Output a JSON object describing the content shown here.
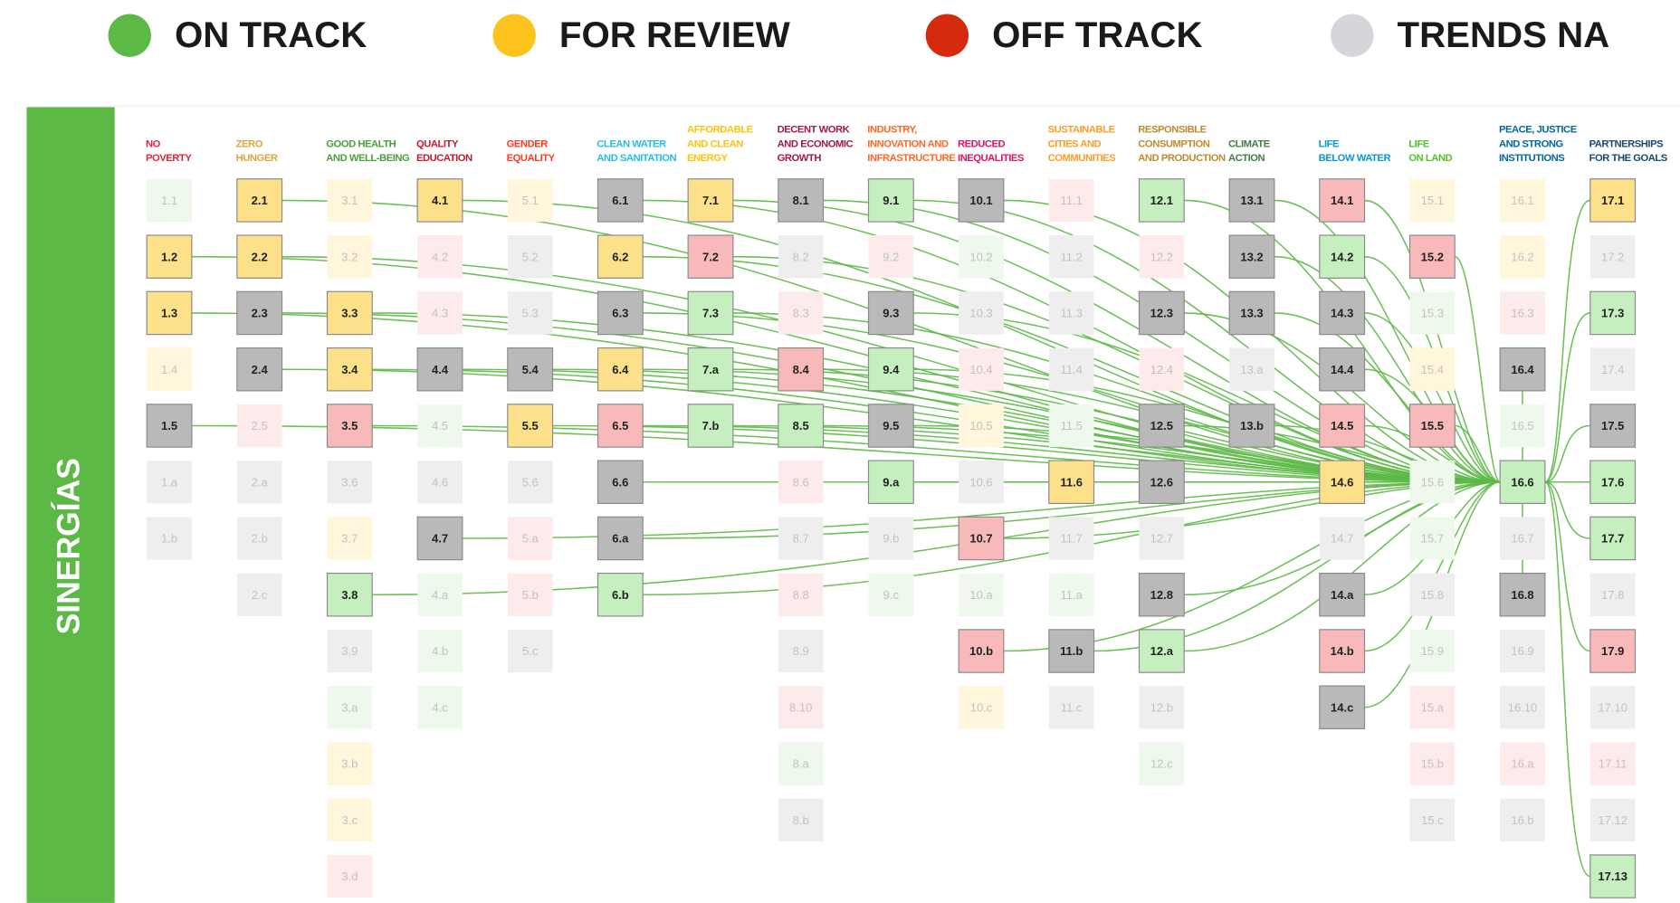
{
  "legend": [
    {
      "label": "ON TRACK",
      "color": "#5cb946",
      "fill": "#c6efc0",
      "fill_faded": "#eef8ec"
    },
    {
      "label": "FOR REVIEW",
      "color": "#fbc31b",
      "fill": "#fde08a",
      "fill_faded": "#fff6dc"
    },
    {
      "label": "OFF TRACK",
      "color": "#d42a0e",
      "fill": "#f7b9b9",
      "fill_faded": "#fdeaea"
    },
    {
      "label": "TRENDS NA",
      "color": "#d6d6da",
      "fill": "#b9b9b9",
      "fill_faded": "#eeeeee"
    }
  ],
  "sidebar": {
    "label": "SINERGÍAS",
    "color": "#5cb946"
  },
  "link_color": "#5cb946",
  "goals": [
    {
      "header": [
        "NO",
        "POVERTY"
      ],
      "color": "#e5243b",
      "targets": [
        {
          "label": "1.1",
          "status": 0,
          "active": false
        },
        {
          "label": "1.2",
          "status": 1,
          "active": true
        },
        {
          "label": "1.3",
          "status": 1,
          "active": true
        },
        {
          "label": "1.4",
          "status": 1,
          "active": false
        },
        {
          "label": "1.5",
          "status": 3,
          "active": true
        },
        {
          "label": "1.a",
          "status": 3,
          "active": false
        },
        {
          "label": "1.b",
          "status": 3,
          "active": false
        }
      ]
    },
    {
      "header": [
        "ZERO",
        "HUNGER"
      ],
      "color": "#dda63a",
      "targets": [
        {
          "label": "2.1",
          "status": 1,
          "active": true
        },
        {
          "label": "2.2",
          "status": 1,
          "active": true
        },
        {
          "label": "2.3",
          "status": 3,
          "active": true
        },
        {
          "label": "2.4",
          "status": 3,
          "active": true
        },
        {
          "label": "2.5",
          "status": 2,
          "active": false
        },
        {
          "label": "2.a",
          "status": 3,
          "active": false
        },
        {
          "label": "2.b",
          "status": 3,
          "active": false
        },
        {
          "label": "2.c",
          "status": 3,
          "active": false
        }
      ]
    },
    {
      "header": [
        "GOOD HEALTH",
        "AND WELL-BEING"
      ],
      "color": "#4c9f38",
      "targets": [
        {
          "label": "3.1",
          "status": 1,
          "active": false
        },
        {
          "label": "3.2",
          "status": 1,
          "active": false
        },
        {
          "label": "3.3",
          "status": 1,
          "active": true
        },
        {
          "label": "3.4",
          "status": 1,
          "active": true
        },
        {
          "label": "3.5",
          "status": 2,
          "active": true
        },
        {
          "label": "3.6",
          "status": 3,
          "active": false
        },
        {
          "label": "3.7",
          "status": 1,
          "active": false
        },
        {
          "label": "3.8",
          "status": 0,
          "active": true
        },
        {
          "label": "3.9",
          "status": 3,
          "active": false
        },
        {
          "label": "3.a",
          "status": 0,
          "active": false
        },
        {
          "label": "3.b",
          "status": 1,
          "active": false
        },
        {
          "label": "3.c",
          "status": 1,
          "active": false
        },
        {
          "label": "3.d",
          "status": 2,
          "active": false
        }
      ]
    },
    {
      "header": [
        "QUALITY",
        "EDUCATION"
      ],
      "color": "#c5192d",
      "targets": [
        {
          "label": "4.1",
          "status": 1,
          "active": true
        },
        {
          "label": "4.2",
          "status": 2,
          "active": false
        },
        {
          "label": "4.3",
          "status": 2,
          "active": false
        },
        {
          "label": "4.4",
          "status": 3,
          "active": true
        },
        {
          "label": "4.5",
          "status": 0,
          "active": false
        },
        {
          "label": "4.6",
          "status": 3,
          "active": false
        },
        {
          "label": "4.7",
          "status": 3,
          "active": true
        },
        {
          "label": "4.a",
          "status": 0,
          "active": false
        },
        {
          "label": "4.b",
          "status": 0,
          "active": false
        },
        {
          "label": "4.c",
          "status": 0,
          "active": false
        }
      ]
    },
    {
      "header": [
        "GENDER",
        "EQUALITY"
      ],
      "color": "#ff3a21",
      "targets": [
        {
          "label": "5.1",
          "status": 1,
          "active": false
        },
        {
          "label": "5.2",
          "status": 3,
          "active": false
        },
        {
          "label": "5.3",
          "status": 3,
          "active": false
        },
        {
          "label": "5.4",
          "status": 3,
          "active": true
        },
        {
          "label": "5.5",
          "status": 1,
          "active": true
        },
        {
          "label": "5.6",
          "status": 3,
          "active": false
        },
        {
          "label": "5.a",
          "status": 2,
          "active": false
        },
        {
          "label": "5.b",
          "status": 2,
          "active": false
        },
        {
          "label": "5.c",
          "status": 3,
          "active": false
        }
      ]
    },
    {
      "header": [
        "CLEAN WATER",
        "AND SANITATION"
      ],
      "color": "#26bde2",
      "targets": [
        {
          "label": "6.1",
          "status": 3,
          "active": true
        },
        {
          "label": "6.2",
          "status": 1,
          "active": true
        },
        {
          "label": "6.3",
          "status": 3,
          "active": true
        },
        {
          "label": "6.4",
          "status": 1,
          "active": true
        },
        {
          "label": "6.5",
          "status": 2,
          "active": true
        },
        {
          "label": "6.6",
          "status": 3,
          "active": true
        },
        {
          "label": "6.a",
          "status": 3,
          "active": true
        },
        {
          "label": "6.b",
          "status": 0,
          "active": true
        }
      ]
    },
    {
      "header": [
        "AFFORDABLE",
        "AND CLEAN",
        "ENERGY"
      ],
      "color": "#fcc30b",
      "targets": [
        {
          "label": "7.1",
          "status": 1,
          "active": true
        },
        {
          "label": "7.2",
          "status": 2,
          "active": true
        },
        {
          "label": "7.3",
          "status": 0,
          "active": true
        },
        {
          "label": "7.a",
          "status": 0,
          "active": true
        },
        {
          "label": "7.b",
          "status": 0,
          "active": true
        }
      ]
    },
    {
      "header": [
        "DECENT WORK",
        "AND ECONOMIC",
        "GROWTH"
      ],
      "color": "#a21942",
      "targets": [
        {
          "label": "8.1",
          "status": 3,
          "active": true
        },
        {
          "label": "8.2",
          "status": 3,
          "active": false
        },
        {
          "label": "8.3",
          "status": 2,
          "active": false
        },
        {
          "label": "8.4",
          "status": 2,
          "active": true
        },
        {
          "label": "8.5",
          "status": 0,
          "active": true
        },
        {
          "label": "8.6",
          "status": 2,
          "active": false
        },
        {
          "label": "8.7",
          "status": 3,
          "active": false
        },
        {
          "label": "8.8",
          "status": 2,
          "active": false
        },
        {
          "label": "8.9",
          "status": 3,
          "active": false
        },
        {
          "label": "8.10",
          "status": 2,
          "active": false
        },
        {
          "label": "8.a",
          "status": 0,
          "active": false
        },
        {
          "label": "8.b",
          "status": 3,
          "active": false
        }
      ]
    },
    {
      "header": [
        "INDUSTRY,",
        "INNOVATION AND",
        "INFRASTRUCTURE"
      ],
      "color": "#fd6925",
      "targets": [
        {
          "label": "9.1",
          "status": 0,
          "active": true
        },
        {
          "label": "9.2",
          "status": 2,
          "active": false
        },
        {
          "label": "9.3",
          "status": 3,
          "active": true
        },
        {
          "label": "9.4",
          "status": 0,
          "active": true
        },
        {
          "label": "9.5",
          "status": 3,
          "active": true
        },
        {
          "label": "9.a",
          "status": 0,
          "active": true
        },
        {
          "label": "9.b",
          "status": 3,
          "active": false
        },
        {
          "label": "9.c",
          "status": 0,
          "active": false
        }
      ]
    },
    {
      "header": [
        "REDUCED",
        "INEQUALITIES"
      ],
      "color": "#dd1367",
      "targets": [
        {
          "label": "10.1",
          "status": 3,
          "active": true
        },
        {
          "label": "10.2",
          "status": 0,
          "active": false
        },
        {
          "label": "10.3",
          "status": 3,
          "active": false
        },
        {
          "label": "10.4",
          "status": 2,
          "active": false
        },
        {
          "label": "10.5",
          "status": 1,
          "active": false
        },
        {
          "label": "10.6",
          "status": 3,
          "active": false
        },
        {
          "label": "10.7",
          "status": 2,
          "active": true
        },
        {
          "label": "10.a",
          "status": 0,
          "active": false
        },
        {
          "label": "10.b",
          "status": 2,
          "active": true
        },
        {
          "label": "10.c",
          "status": 1,
          "active": false
        }
      ]
    },
    {
      "header": [
        "SUSTAINABLE",
        "CITIES AND",
        "COMMUNITIES"
      ],
      "color": "#fd9d24",
      "targets": [
        {
          "label": "11.1",
          "status": 2,
          "active": false
        },
        {
          "label": "11.2",
          "status": 3,
          "active": false
        },
        {
          "label": "11.3",
          "status": 3,
          "active": false
        },
        {
          "label": "11.4",
          "status": 3,
          "active": false
        },
        {
          "label": "11.5",
          "status": 0,
          "active": false
        },
        {
          "label": "11.6",
          "status": 1,
          "active": true
        },
        {
          "label": "11.7",
          "status": 3,
          "active": false
        },
        {
          "label": "11.a",
          "status": 0,
          "active": false
        },
        {
          "label": "11.b",
          "status": 3,
          "active": true
        },
        {
          "label": "11.c",
          "status": 3,
          "active": false
        }
      ]
    },
    {
      "header": [
        "RESPONSIBLE",
        "CONSUMPTION",
        "AND PRODUCTION"
      ],
      "color": "#bf8b2e",
      "targets": [
        {
          "label": "12.1",
          "status": 0,
          "active": true
        },
        {
          "label": "12.2",
          "status": 2,
          "active": false
        },
        {
          "label": "12.3",
          "status": 3,
          "active": true
        },
        {
          "label": "12.4",
          "status": 2,
          "active": false
        },
        {
          "label": "12.5",
          "status": 3,
          "active": true
        },
        {
          "label": "12.6",
          "status": 3,
          "active": true
        },
        {
          "label": "12.7",
          "status": 3,
          "active": false
        },
        {
          "label": "12.8",
          "status": 3,
          "active": true
        },
        {
          "label": "12.a",
          "status": 0,
          "active": true
        },
        {
          "label": "12.b",
          "status": 3,
          "active": false
        },
        {
          "label": "12.c",
          "status": 0,
          "active": false
        }
      ]
    },
    {
      "header": [
        "CLIMATE",
        "ACTION"
      ],
      "color": "#3f7e44",
      "targets": [
        {
          "label": "13.1",
          "status": 3,
          "active": true
        },
        {
          "label": "13.2",
          "status": 3,
          "active": true
        },
        {
          "label": "13.3",
          "status": 3,
          "active": true
        },
        {
          "label": "13.a",
          "status": 3,
          "active": false
        },
        {
          "label": "13.b",
          "status": 3,
          "active": true
        }
      ]
    },
    {
      "header": [
        "LIFE",
        "BELOW WATER"
      ],
      "color": "#0a97d9",
      "targets": [
        {
          "label": "14.1",
          "status": 2,
          "active": true
        },
        {
          "label": "14.2",
          "status": 0,
          "active": true
        },
        {
          "label": "14.3",
          "status": 3,
          "active": true
        },
        {
          "label": "14.4",
          "status": 3,
          "active": true
        },
        {
          "label": "14.5",
          "status": 2,
          "active": true
        },
        {
          "label": "14.6",
          "status": 1,
          "active": true
        },
        {
          "label": "14.7",
          "status": 3,
          "active": false
        },
        {
          "label": "14.a",
          "status": 3,
          "active": true
        },
        {
          "label": "14.b",
          "status": 2,
          "active": true
        },
        {
          "label": "14.c",
          "status": 3,
          "active": true
        }
      ]
    },
    {
      "header": [
        "LIFE",
        "ON LAND"
      ],
      "color": "#56c02b",
      "targets": [
        {
          "label": "15.1",
          "status": 1,
          "active": false
        },
        {
          "label": "15.2",
          "status": 2,
          "active": true
        },
        {
          "label": "15.3",
          "status": 0,
          "active": false
        },
        {
          "label": "15.4",
          "status": 1,
          "active": false
        },
        {
          "label": "15.5",
          "status": 2,
          "active": true
        },
        {
          "label": "15.6",
          "status": 0,
          "active": false
        },
        {
          "label": "15.7",
          "status": 0,
          "active": false
        },
        {
          "label": "15.8",
          "status": 3,
          "active": false
        },
        {
          "label": "15.9",
          "status": 0,
          "active": false
        },
        {
          "label": "15.a",
          "status": 2,
          "active": false
        },
        {
          "label": "15.b",
          "status": 2,
          "active": false
        },
        {
          "label": "15.c",
          "status": 3,
          "active": false
        }
      ]
    },
    {
      "header": [
        "PEACE, JUSTICE",
        "AND STRONG",
        "INSTITUTIONS"
      ],
      "color": "#00689d",
      "targets": [
        {
          "label": "16.1",
          "status": 1,
          "active": false
        },
        {
          "label": "16.2",
          "status": 1,
          "active": false
        },
        {
          "label": "16.3",
          "status": 2,
          "active": false
        },
        {
          "label": "16.4",
          "status": 3,
          "active": true
        },
        {
          "label": "16.5",
          "status": 0,
          "active": false
        },
        {
          "label": "16.6",
          "status": 0,
          "active": true,
          "hub": true
        },
        {
          "label": "16.7",
          "status": 3,
          "active": false
        },
        {
          "label": "16.8",
          "status": 3,
          "active": true
        },
        {
          "label": "16.9",
          "status": 3,
          "active": false
        },
        {
          "label": "16.10",
          "status": 3,
          "active": false
        },
        {
          "label": "16.a",
          "status": 2,
          "active": false
        },
        {
          "label": "16.b",
          "status": 3,
          "active": false
        }
      ]
    },
    {
      "header": [
        "PARTNERSHIPS",
        "FOR THE GOALS"
      ],
      "color": "#19486a",
      "targets": [
        {
          "label": "17.1",
          "status": 1,
          "active": true
        },
        {
          "label": "17.2",
          "status": 3,
          "active": false
        },
        {
          "label": "17.3",
          "status": 0,
          "active": true
        },
        {
          "label": "17.4",
          "status": 3,
          "active": false
        },
        {
          "label": "17.5",
          "status": 3,
          "active": true
        },
        {
          "label": "17.6",
          "status": 0,
          "active": true
        },
        {
          "label": "17.7",
          "status": 0,
          "active": true
        },
        {
          "label": "17.8",
          "status": 3,
          "active": false
        },
        {
          "label": "17.9",
          "status": 2,
          "active": true
        },
        {
          "label": "17.10",
          "status": 3,
          "active": false
        },
        {
          "label": "17.11",
          "status": 2,
          "active": false
        },
        {
          "label": "17.12",
          "status": 3,
          "active": false
        },
        {
          "label": "17.13",
          "status": 0,
          "active": true
        }
      ]
    }
  ]
}
